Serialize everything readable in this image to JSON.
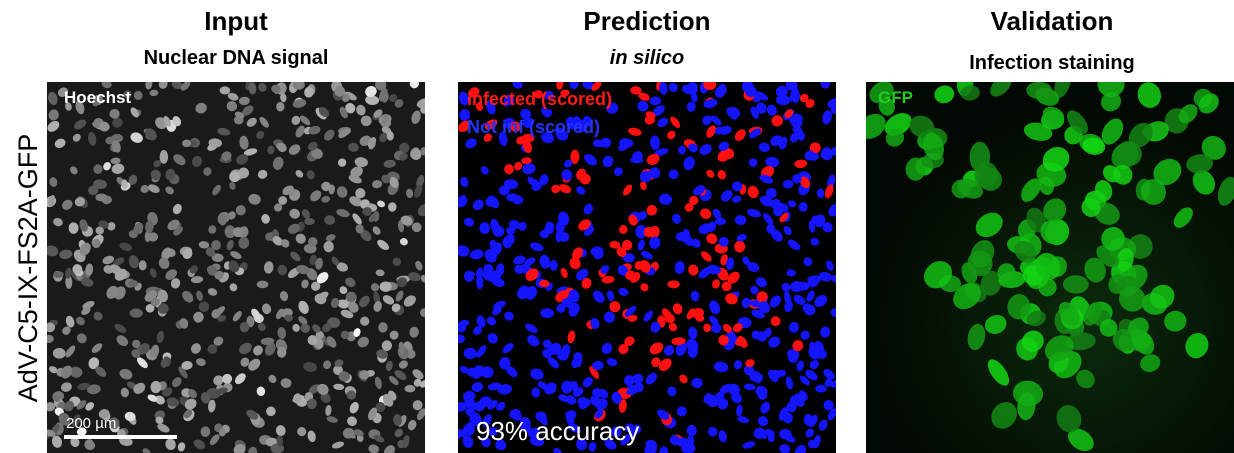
{
  "row_label": "AdV-C5-IX-FS2A-GFP",
  "panels": [
    {
      "title": "Input",
      "subtitle": "Nuclear DNA signal",
      "channel_label": "Hoechst",
      "scale_bar": "200 µm"
    },
    {
      "title": "Prediction",
      "subtitle": "in silico",
      "legend": [
        "Infected (scored)",
        "Not inf (scored)"
      ],
      "accuracy": "93% accuracy"
    },
    {
      "title": "Validation",
      "subtitle": "Infection staining",
      "channel_label": "GFP"
    }
  ]
}
